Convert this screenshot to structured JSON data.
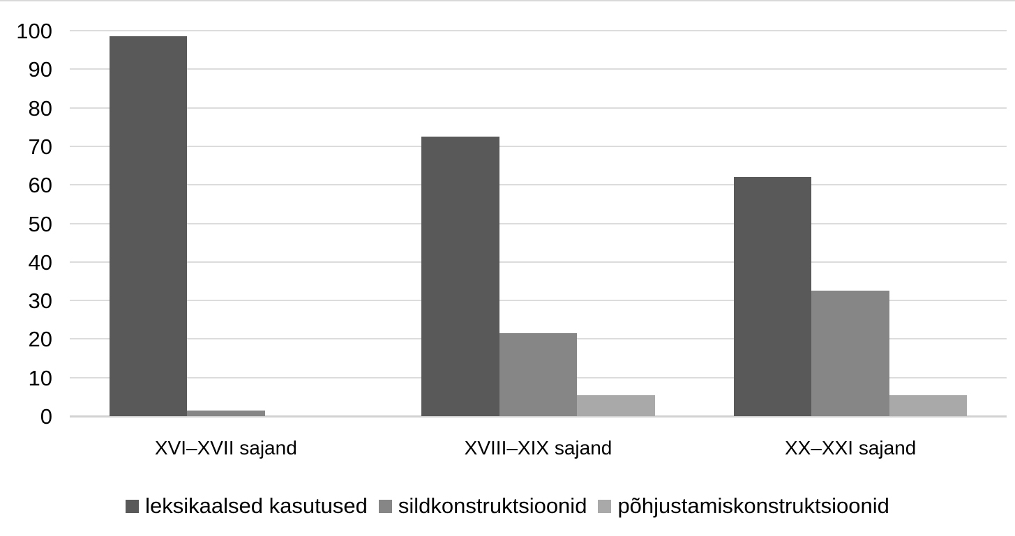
{
  "chart_data": {
    "type": "bar",
    "title": "",
    "xlabel": "",
    "ylabel": "",
    "categories": [
      "XVI–XVII sajand",
      "XVIII–XIX sajand",
      "XX–XXI sajand"
    ],
    "series": [
      {
        "name": "leksikaalsed kasutused",
        "color": "#595959",
        "values": [
          98.5,
          72.5,
          62.0
        ]
      },
      {
        "name": "sildkonstruktsioonid",
        "color": "#868686",
        "values": [
          1.5,
          21.5,
          32.5
        ]
      },
      {
        "name": "põhjustamiskonstruktsioonid",
        "color": "#a9a9a9",
        "values": [
          0,
          5.5,
          5.5
        ]
      }
    ],
    "ylim": [
      0,
      100
    ],
    "yticks": [
      0,
      10,
      20,
      30,
      40,
      50,
      60,
      70,
      80,
      90,
      100
    ],
    "grid": true,
    "gridline_color": "#dcdcdc",
    "axis_line_color": "#d2d2d2",
    "background_color": "#ffffff",
    "text_color": "#000000",
    "legend_position": "bottom"
  }
}
